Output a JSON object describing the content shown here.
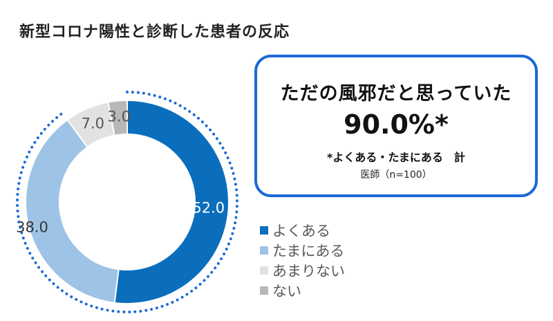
{
  "title": "新型コロナ陽性と診断した患者の反応",
  "callout": {
    "headline": "ただの風邪だと思っていた",
    "value": "90.0%*",
    "footnote": "*よくある・たまにある　計",
    "sample": "医師（n=100）"
  },
  "colors": {
    "accent": "#1a6ad6"
  },
  "chart_data": {
    "type": "pie",
    "variant": "donut",
    "categories": [
      "よくある",
      "たまにある",
      "あまりない",
      "ない"
    ],
    "values": [
      52.0,
      38.0,
      7.0,
      3.0
    ],
    "value_labels": [
      "52.0",
      "38.0",
      "7.0",
      "3.0"
    ],
    "colors": [
      "#0a6ebd",
      "#9dc3e6",
      "#e2e2e2",
      "#b8b8b8"
    ],
    "label_colors": [
      "#ffffff",
      "#333333",
      "#555555",
      "#555555"
    ],
    "legend": "right",
    "annotation": "dotted arc highlighting よくある + たまにある"
  }
}
